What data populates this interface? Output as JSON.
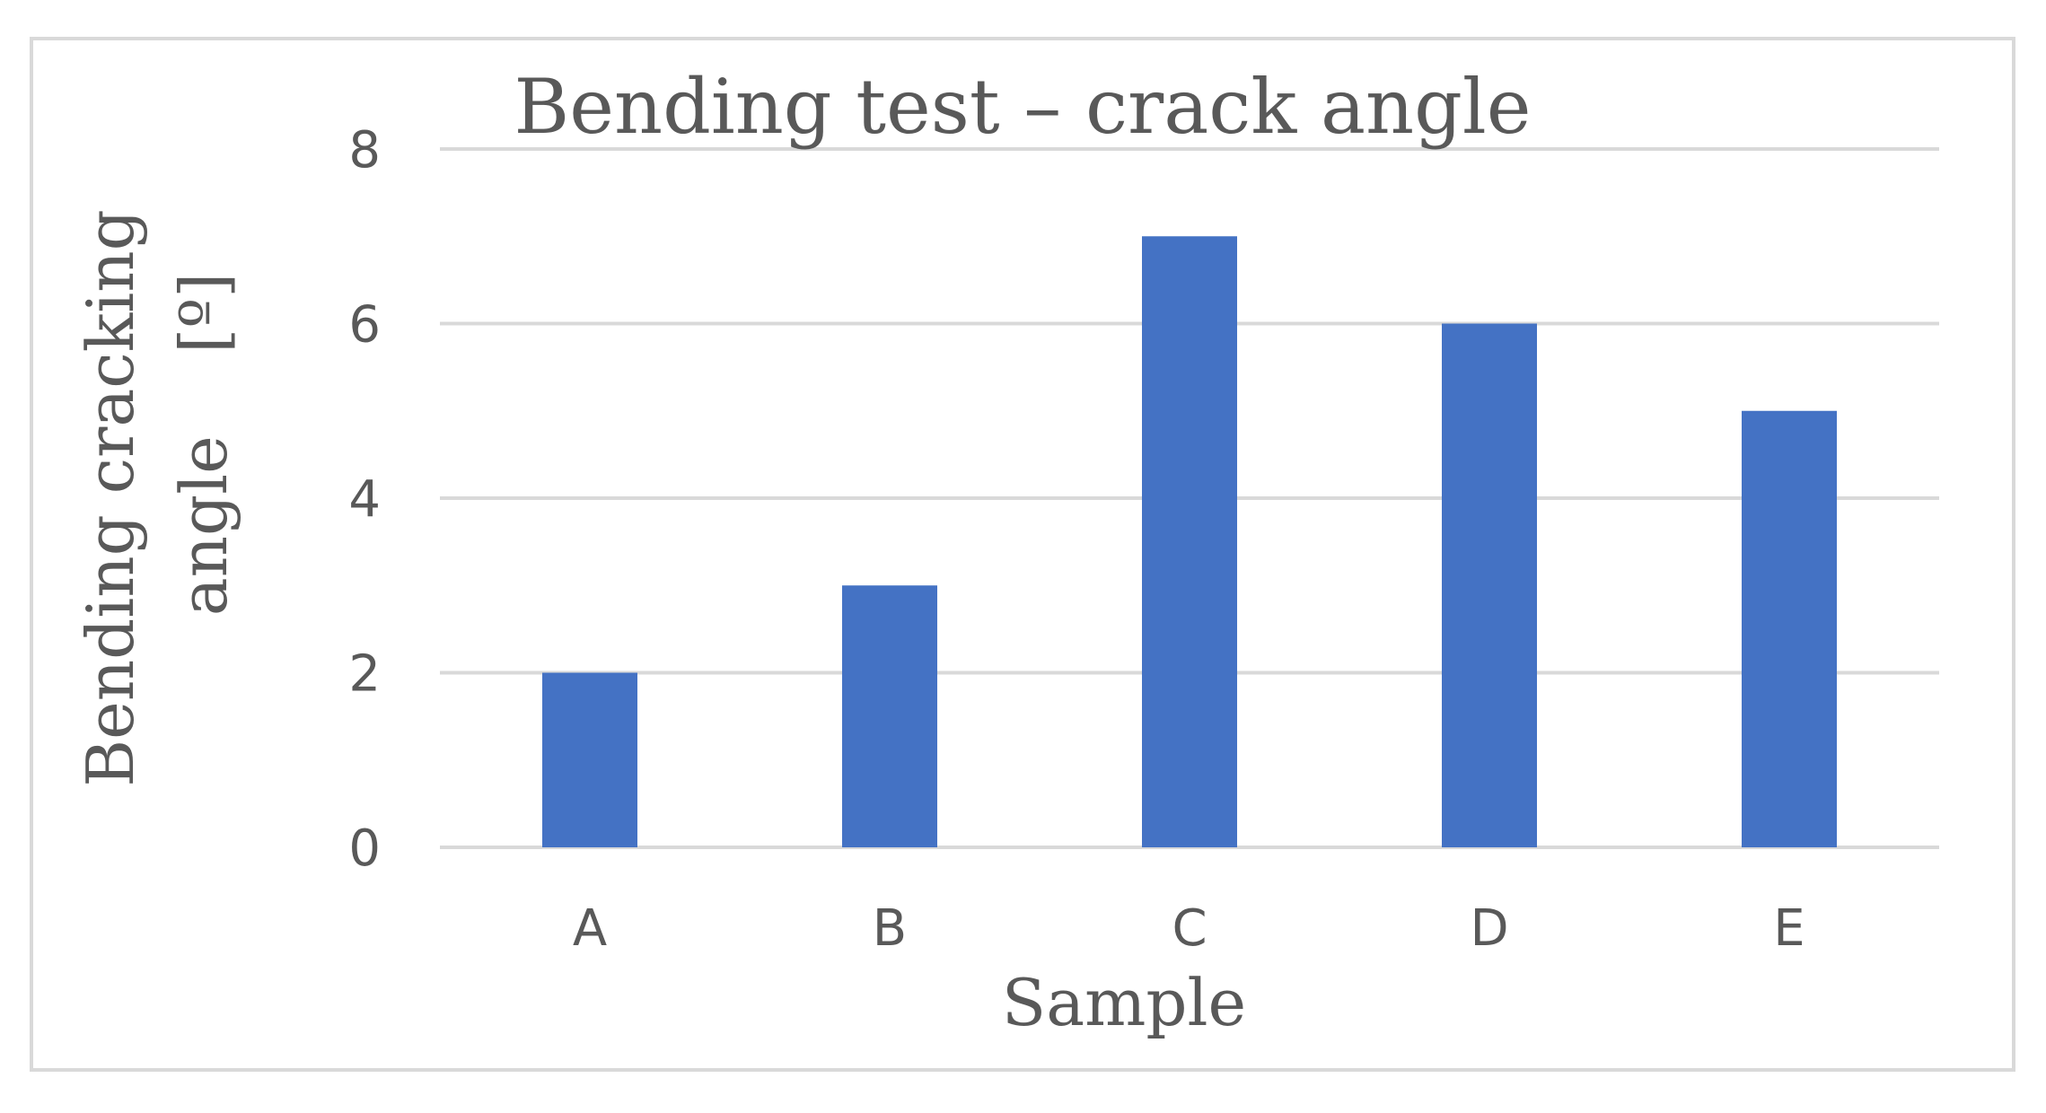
{
  "chart_data": {
    "type": "bar",
    "title": "Bending test – crack angle",
    "xlabel": "Sample",
    "ylabel_line1": "Bending cracking",
    "ylabel_line2": "angle    [º]",
    "categories": [
      "A",
      "B",
      "C",
      "D",
      "E"
    ],
    "values": [
      2,
      3,
      7,
      6,
      5
    ],
    "ylim": [
      0,
      8
    ],
    "yticks": [
      "0",
      "2",
      "4",
      "6",
      "8"
    ],
    "grid": true,
    "legend": "none",
    "bar_color": "#4472c4",
    "grid_color": "#d9d9d9",
    "text_color": "#595959"
  }
}
